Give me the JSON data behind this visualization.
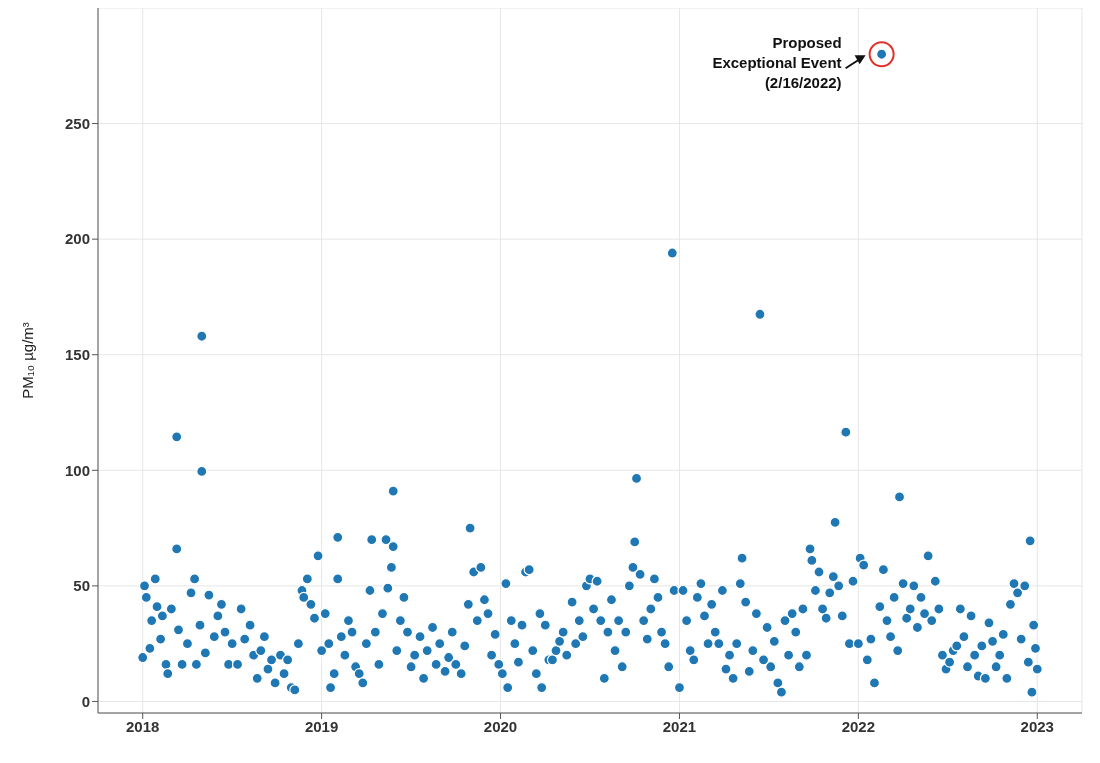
{
  "chart_data": {
    "type": "scatter",
    "ylabel": "PM₁₀ µg/m³",
    "x": [
      2018.0,
      2018.01,
      2018.02,
      2018.04,
      2018.05,
      2018.07,
      2018.08,
      2018.1,
      2018.11,
      2018.13,
      2018.14,
      2018.16,
      2018.19,
      2018.19,
      2018.2,
      2018.22,
      2018.25,
      2018.27,
      2018.29,
      2018.3,
      2018.32,
      2018.33,
      2018.33,
      2018.35,
      2018.37,
      2018.4,
      2018.42,
      2018.44,
      2018.46,
      2018.48,
      2018.5,
      2018.53,
      2018.55,
      2018.57,
      2018.6,
      2018.62,
      2018.64,
      2018.66,
      2018.68,
      2018.7,
      2018.72,
      2018.74,
      2018.77,
      2018.79,
      2018.81,
      2018.83,
      2018.85,
      2018.87,
      2018.89,
      2018.9,
      2018.92,
      2018.94,
      2018.96,
      2018.98,
      2019.0,
      2019.02,
      2019.04,
      2019.05,
      2019.07,
      2019.09,
      2019.09,
      2019.11,
      2019.13,
      2019.15,
      2019.17,
      2019.19,
      2019.21,
      2019.23,
      2019.25,
      2019.27,
      2019.28,
      2019.3,
      2019.32,
      2019.34,
      2019.36,
      2019.37,
      2019.39,
      2019.4,
      2019.4,
      2019.42,
      2019.44,
      2019.46,
      2019.48,
      2019.5,
      2019.52,
      2019.55,
      2019.57,
      2019.59,
      2019.62,
      2019.64,
      2019.66,
      2019.69,
      2019.71,
      2019.73,
      2019.75,
      2019.78,
      2019.8,
      2019.82,
      2019.83,
      2019.85,
      2019.87,
      2019.89,
      2019.91,
      2019.93,
      2019.95,
      2019.97,
      2019.99,
      2020.01,
      2020.03,
      2020.04,
      2020.06,
      2020.08,
      2020.1,
      2020.12,
      2020.14,
      2020.16,
      2020.18,
      2020.2,
      2020.22,
      2020.23,
      2020.25,
      2020.27,
      2020.29,
      2020.31,
      2020.33,
      2020.35,
      2020.37,
      2020.4,
      2020.42,
      2020.44,
      2020.46,
      2020.48,
      2020.5,
      2020.52,
      2020.54,
      2020.56,
      2020.58,
      2020.6,
      2020.62,
      2020.64,
      2020.66,
      2020.68,
      2020.7,
      2020.72,
      2020.74,
      2020.75,
      2020.76,
      2020.78,
      2020.8,
      2020.82,
      2020.84,
      2020.86,
      2020.88,
      2020.9,
      2020.92,
      2020.94,
      2020.96,
      2020.97,
      2021.0,
      2021.02,
      2021.04,
      2021.06,
      2021.08,
      2021.1,
      2021.12,
      2021.14,
      2021.16,
      2021.18,
      2021.2,
      2021.22,
      2021.24,
      2021.26,
      2021.28,
      2021.3,
      2021.32,
      2021.34,
      2021.35,
      2021.37,
      2021.39,
      2021.41,
      2021.43,
      2021.45,
      2021.47,
      2021.49,
      2021.51,
      2021.53,
      2021.55,
      2021.57,
      2021.59,
      2021.61,
      2021.63,
      2021.65,
      2021.67,
      2021.69,
      2021.71,
      2021.73,
      2021.74,
      2021.76,
      2021.78,
      2021.8,
      2021.82,
      2021.84,
      2021.86,
      2021.87,
      2021.89,
      2021.91,
      2021.93,
      2021.95,
      2021.97,
      2022.0,
      2022.01,
      2022.03,
      2022.05,
      2022.07,
      2022.09,
      2022.13,
      2022.12,
      2022.14,
      2022.16,
      2022.18,
      2022.2,
      2022.22,
      2022.23,
      2022.25,
      2022.27,
      2022.29,
      2022.31,
      2022.33,
      2022.35,
      2022.37,
      2022.39,
      2022.41,
      2022.43,
      2022.45,
      2022.47,
      2022.49,
      2022.51,
      2022.53,
      2022.55,
      2022.57,
      2022.59,
      2022.61,
      2022.63,
      2022.65,
      2022.67,
      2022.69,
      2022.71,
      2022.73,
      2022.75,
      2022.77,
      2022.79,
      2022.81,
      2022.83,
      2022.85,
      2022.87,
      2022.89,
      2022.91,
      2022.93,
      2022.95,
      2022.96,
      2022.97,
      2022.98,
      2022.99,
      2023.0
    ],
    "values": [
      19,
      50,
      45,
      23,
      35,
      53,
      41,
      27,
      37,
      16,
      12,
      40,
      114.5,
      66,
      31,
      16,
      25,
      47,
      53,
      16,
      33,
      158,
      99.5,
      21,
      46,
      28,
      37,
      42,
      30,
      16,
      25,
      16,
      40,
      27,
      33,
      20,
      10,
      22,
      28,
      14,
      18,
      8,
      20,
      12,
      18,
      6,
      5,
      25,
      48,
      45,
      53,
      42,
      36,
      63,
      22,
      38,
      25,
      6,
      12,
      71,
      53,
      28,
      20,
      35,
      30,
      15,
      12,
      8,
      25,
      48,
      70,
      30,
      16,
      38,
      70,
      49,
      58,
      67,
      91,
      22,
      35,
      45,
      30,
      15,
      20,
      28,
      10,
      22,
      32,
      16,
      25,
      13,
      19,
      30,
      16,
      12,
      24,
      42,
      75,
      56,
      35,
      58,
      44,
      38,
      20,
      29,
      16,
      12,
      51,
      6,
      35,
      25,
      17,
      33,
      56,
      57,
      22,
      12,
      38,
      6,
      33,
      18,
      18,
      22,
      26,
      30,
      20,
      43,
      25,
      35,
      28,
      50,
      53,
      40,
      52,
      35,
      10,
      30,
      44,
      22,
      35,
      15,
      30,
      50,
      58,
      69,
      96.5,
      55,
      35,
      27,
      40,
      53,
      45,
      30,
      25,
      15,
      194,
      48,
      6,
      48,
      35,
      22,
      18,
      45,
      51,
      37,
      25,
      42,
      30,
      25,
      48,
      14,
      20,
      10,
      25,
      51,
      62,
      43,
      13,
      22,
      38,
      167.5,
      18,
      32,
      15,
      26,
      8,
      4,
      35,
      20,
      38,
      30,
      15,
      40,
      20,
      66,
      61,
      48,
      56,
      40,
      36,
      47,
      54,
      77.5,
      50,
      37,
      116.5,
      25,
      52,
      25,
      62,
      59,
      18,
      27,
      8,
      280,
      41,
      57,
      35,
      28,
      45,
      22,
      88.5,
      51,
      36,
      40,
      50,
      32,
      45,
      38,
      63,
      35,
      52,
      40,
      20,
      14,
      17,
      22,
      24,
      40,
      28,
      15,
      37,
      20,
      11,
      24,
      10,
      34,
      26,
      15,
      20,
      29,
      10,
      42,
      51,
      47,
      27,
      50,
      17,
      69.5,
      4,
      33,
      23,
      14
    ],
    "color": "#1f77b4",
    "marker": "circle",
    "xlim": [
      2017.75,
      2023.25
    ],
    "xticks": [
      2018,
      2019,
      2020,
      2021,
      2022,
      2023
    ],
    "ylim": [
      -5,
      300
    ],
    "yticks": [
      0,
      50,
      100,
      150,
      200,
      250
    ],
    "grid": true,
    "annotations": [
      {
        "text": "Proposed\nExceptional Event\n(2/16/2022)",
        "x": 2022.13,
        "y": 280
      }
    ]
  }
}
